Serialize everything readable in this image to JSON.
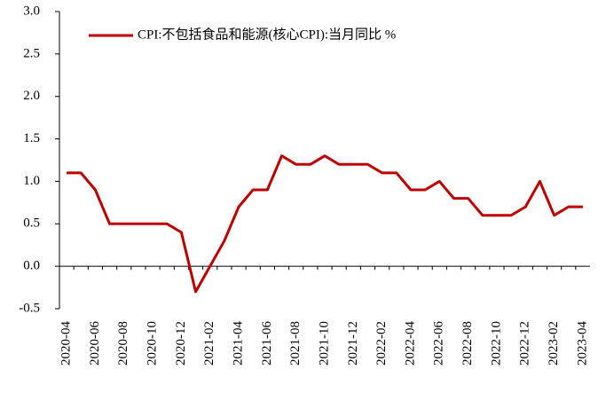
{
  "chart_data": {
    "type": "line",
    "categories": [
      "2020-04",
      null,
      "2020-06",
      null,
      "2020-08",
      null,
      "2020-10",
      null,
      "2020-12",
      null,
      "2021-02",
      null,
      "2021-04",
      null,
      "2021-06",
      null,
      "2021-08",
      null,
      "2021-10",
      null,
      "2021-12",
      null,
      "2022-02",
      null,
      "2022-04",
      null,
      "2022-06",
      null,
      "2022-08",
      null,
      "2022-10",
      null,
      "2022-12",
      null,
      "2023-02",
      null,
      "2023-04"
    ],
    "series": [
      {
        "name": "CPI:不包括食品和能源(核心CPI):当月同比 %",
        "color": "#c00000",
        "values": [
          1.1,
          1.1,
          0.9,
          0.5,
          0.5,
          0.5,
          0.5,
          0.5,
          0.4,
          -0.3,
          0.0,
          0.3,
          0.7,
          0.9,
          0.9,
          1.3,
          1.2,
          1.2,
          1.3,
          1.2,
          1.2,
          1.2,
          1.1,
          1.1,
          0.9,
          0.9,
          1.0,
          0.8,
          0.8,
          0.6,
          0.6,
          0.6,
          0.7,
          1.0,
          0.6,
          0.7,
          0.7
        ]
      }
    ],
    "ylim": [
      -0.5,
      3.0
    ],
    "yticks": [
      -0.5,
      {
        "value": 0,
        "label": "0.0"
      },
      0.5,
      {
        "value": 1,
        "label": "1.0"
      },
      1.5,
      {
        "value": 2,
        "label": "2.0"
      },
      2.5,
      {
        "value": 3,
        "label": "3.0"
      }
    ],
    "legend": "top"
  }
}
